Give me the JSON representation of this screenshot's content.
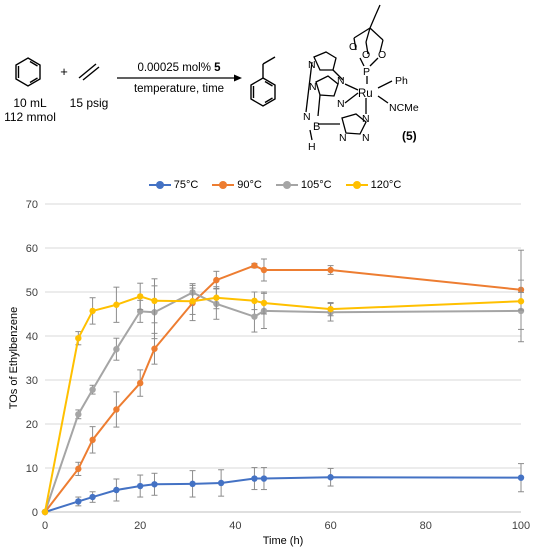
{
  "scheme": {
    "benzene_volume": "10 mL",
    "benzene_amount": "112 mmol",
    "plus": "+",
    "ethylene_pressure": "15 psig",
    "arrow_top_text": "0.00025 mol% ",
    "arrow_top_bold": "5",
    "arrow_bottom_text": "temperature, time",
    "catalyst_label": "(5)",
    "catalyst_atoms": {
      "P": "P",
      "Ru": "Ru",
      "Ph": "Ph",
      "NCMe": "NCMe",
      "B": "B",
      "H": "H",
      "O": "O",
      "N": "N"
    }
  },
  "chart_data": {
    "type": "line",
    "xlabel": "Time (h)",
    "ylabel": "TOs of Ethylbenzene",
    "xlim": [
      0,
      100
    ],
    "ylim": [
      0,
      70
    ],
    "xticks": [
      0,
      20,
      40,
      60,
      80,
      100
    ],
    "yticks": [
      0,
      10,
      20,
      30,
      40,
      50,
      60,
      70
    ],
    "grid": "horizontal",
    "legend_position": "top",
    "series": [
      {
        "name": "75°C",
        "color": "#4472C4",
        "x": [
          0,
          7,
          10,
          15,
          20,
          23,
          31,
          37,
          44,
          46,
          60,
          100
        ],
        "y": [
          0,
          2.4,
          3.4,
          5.0,
          5.9,
          6.3,
          6.4,
          6.6,
          7.6,
          7.6,
          7.9,
          7.8
        ],
        "err": [
          0,
          1.0,
          1.2,
          2.5,
          2.5,
          2.5,
          3.0,
          3.0,
          2.5,
          2.5,
          2.0,
          3.2
        ]
      },
      {
        "name": "90°C",
        "color": "#ED7D31",
        "x": [
          0,
          7,
          10,
          15,
          20,
          23,
          31,
          36,
          44,
          46,
          60,
          100
        ],
        "y": [
          0,
          9.8,
          16.4,
          23.3,
          29.3,
          37.1,
          47.5,
          52.7,
          56.0,
          55.0,
          55.0,
          50.5
        ],
        "err": [
          0,
          1.5,
          3.0,
          4.0,
          3.0,
          3.5,
          4.0,
          2.0,
          0.5,
          2.5,
          1.0,
          9.0
        ]
      },
      {
        "name": "105°C",
        "color": "#A5A5A5",
        "x": [
          0,
          7,
          10,
          15,
          20,
          23,
          31,
          36,
          44,
          46,
          60,
          100
        ],
        "y": [
          0,
          22.2,
          27.8,
          37.0,
          45.6,
          45.4,
          49.9,
          47.3,
          44.4,
          45.7,
          45.4,
          45.7
        ],
        "err": [
          0,
          1.0,
          1.0,
          2.5,
          2.5,
          6.0,
          2.0,
          3.5,
          3.5,
          4.0,
          2.0,
          7.0
        ]
      },
      {
        "name": "120°C",
        "color": "#FFC000",
        "x": [
          0,
          7,
          10,
          15,
          20,
          23,
          31,
          36,
          44,
          46,
          60,
          100
        ],
        "y": [
          0,
          39.5,
          45.7,
          47.1,
          49.0,
          48.0,
          47.9,
          48.7,
          48.0,
          47.5,
          46.1,
          47.9
        ],
        "err": [
          0,
          1.5,
          3.0,
          4.0,
          3.0,
          5.0,
          3.0,
          2.5,
          2.0,
          2.5,
          1.5,
          2.0
        ]
      }
    ]
  }
}
